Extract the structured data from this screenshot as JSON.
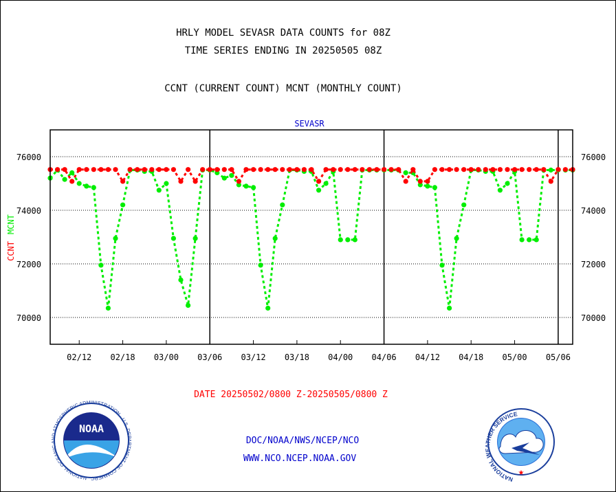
{
  "header": {
    "line1": "HRLY MODEL SEVASR DATA COUNTS for 08Z",
    "line2": "TIME SERIES ENDING IN 20250505 08Z",
    "line3": "CCNT (CURRENT COUNT) MCNT (MONTHLY COUNT)"
  },
  "footer": {
    "date_range": "DATE 20250502/0800 Z-20250505/0800 Z",
    "org_path": "DOC/NOAA/NWS/NCEP/NCO",
    "website": "WWW.NCO.NCEP.NOAA.GOV"
  },
  "logos": {
    "noaa": "NOAA",
    "noaa_ring": "NATIONAL OCEANIC AND ATMOSPHERIC ADMINISTRATION · U.S. DEPARTMENT OF COMMERCE ·",
    "nws_ring": "NATIONAL WEATHER SERVICE"
  },
  "colors": {
    "ccnt": "#ff0000",
    "mcnt": "#00ee00",
    "title_blue": "#0000cc",
    "date_red": "#ff0000"
  },
  "chart_data": {
    "type": "line",
    "title": "SEVASR",
    "ylabel_parts": [
      {
        "text": "CCNT",
        "color": "#ff0000"
      },
      {
        "text": "MCNT",
        "color": "#00ee00"
      }
    ],
    "x_tick_labels": [
      "02/12",
      "02/18",
      "03/00",
      "03/06",
      "03/12",
      "03/18",
      "04/00",
      "04/06",
      "04/12",
      "04/18",
      "05/00",
      "05/06"
    ],
    "x_ticks_hours": [
      12,
      18,
      24,
      30,
      36,
      42,
      48,
      54,
      60,
      66,
      72,
      78
    ],
    "xlim_hours": [
      8,
      80
    ],
    "day_boundaries_hours": [
      30,
      54,
      78
    ],
    "y_ticks": [
      70000,
      72000,
      74000,
      76000
    ],
    "ylim": [
      69000,
      77000
    ],
    "grid": true,
    "series": [
      {
        "name": "CCNT",
        "color": "#ff0000",
        "x": [
          8,
          9,
          10,
          11,
          12,
          13,
          14,
          15,
          16,
          17,
          18,
          19,
          20,
          21,
          22,
          23,
          24,
          25,
          26,
          27,
          28,
          29,
          30,
          31,
          32,
          33,
          34,
          35,
          36,
          37,
          38,
          39,
          40,
          41,
          42,
          43,
          44,
          45,
          46,
          47,
          48,
          49,
          50,
          51,
          52,
          53,
          54,
          55,
          56,
          57,
          58,
          59,
          60,
          61,
          62,
          63,
          64,
          65,
          66,
          67,
          68,
          69,
          70,
          71,
          72,
          73,
          74,
          75,
          76,
          77,
          78,
          79,
          80
        ],
        "values": [
          75520,
          75520,
          75520,
          75080,
          75520,
          75520,
          75520,
          75520,
          75520,
          75520,
          75080,
          75520,
          75520,
          75520,
          75520,
          75520,
          75520,
          75520,
          75080,
          75520,
          75080,
          75520,
          75520,
          75520,
          75520,
          75520,
          75080,
          75520,
          75520,
          75520,
          75520,
          75520,
          75520,
          75520,
          75520,
          75520,
          75520,
          75080,
          75520,
          75520,
          75520,
          75520,
          75520,
          75520,
          75520,
          75520,
          75520,
          75520,
          75520,
          75080,
          75520,
          75080,
          75080,
          75520,
          75520,
          75520,
          75520,
          75520,
          75520,
          75520,
          75520,
          75520,
          75520,
          75520,
          75520,
          75520,
          75520,
          75520,
          75520,
          75080,
          75520,
          75520,
          75520
        ]
      },
      {
        "name": "MCNT",
        "color": "#00ee00",
        "x": [
          8,
          9,
          10,
          11,
          12,
          13,
          14,
          15,
          16,
          17,
          18,
          19,
          20,
          21,
          22,
          23,
          24,
          25,
          26,
          27,
          28,
          29,
          30,
          31,
          32,
          33,
          34,
          35,
          36,
          37,
          38,
          39,
          40,
          41,
          42,
          43,
          44,
          45,
          46,
          47,
          48,
          49,
          50,
          51,
          52,
          53,
          54,
          55,
          56,
          57,
          58,
          59,
          60,
          61,
          62,
          63,
          64,
          65,
          66,
          67,
          68,
          69,
          70,
          71,
          72,
          73,
          74,
          75,
          76,
          77,
          78,
          79,
          80
        ],
        "values": [
          75200,
          75500,
          75150,
          75400,
          75000,
          74900,
          74850,
          71950,
          70350,
          72950,
          74200,
          75500,
          75500,
          75450,
          75450,
          74750,
          75000,
          72950,
          71400,
          70450,
          72950,
          75500,
          75500,
          75400,
          75200,
          75300,
          74950,
          74900,
          74850,
          71950,
          70350,
          72950,
          74200,
          75500,
          75500,
          75450,
          75450,
          74750,
          75000,
          75450,
          72900,
          72900,
          72900,
          75500,
          75500,
          75500,
          75500,
          75500,
          75500,
          75400,
          75400,
          74950,
          74900,
          74850,
          71950,
          70350,
          72950,
          74200,
          75500,
          75500,
          75450,
          75450,
          74750,
          75000,
          75450,
          72900,
          72900,
          72900,
          75500,
          75500,
          75500,
          75500,
          75500
        ]
      }
    ]
  }
}
